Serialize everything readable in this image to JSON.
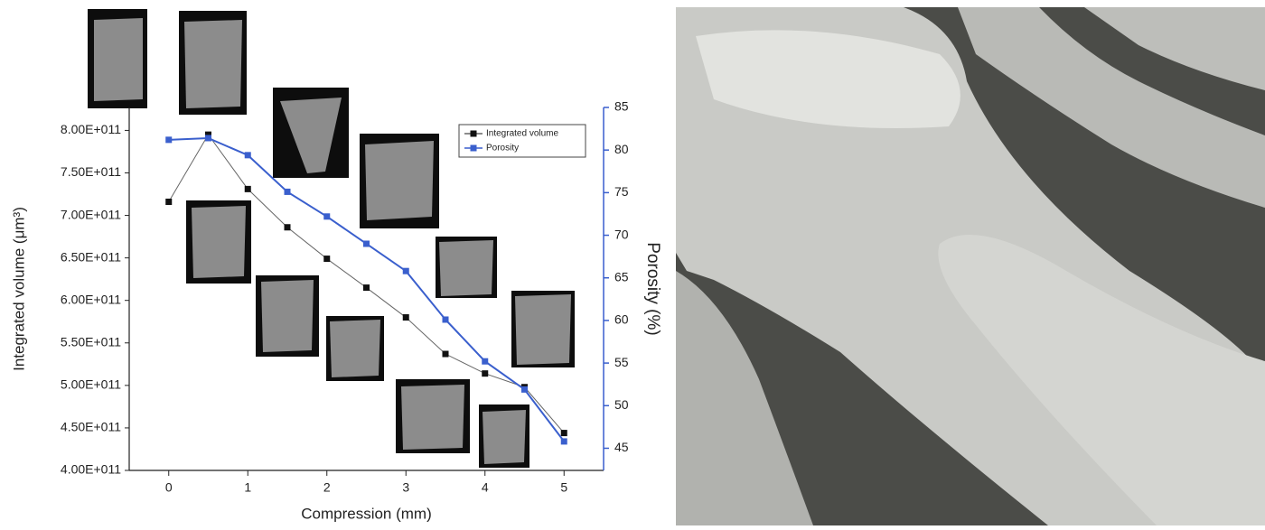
{
  "chart_data": {
    "type": "line",
    "x_label": "Compression (mm)",
    "y_label": "Integrated volume (μm³)",
    "y2_label": "Porosity (%)",
    "x": [
      0,
      0.5,
      1,
      1.5,
      2,
      2.5,
      3,
      3.5,
      4,
      4.5,
      5
    ],
    "series": [
      {
        "name": "Integrated volume",
        "color": "#111111",
        "line_color": "#666666",
        "values": [
          716000000000,
          795000000000,
          731000000000,
          686000000000,
          649000000000,
          615000000000,
          580000000000,
          537000000000,
          514000000000,
          498000000000,
          444000000000
        ]
      },
      {
        "name": "Porosity",
        "color": "#3a5fcd",
        "axis": "y2",
        "values": [
          81.2,
          81.4,
          79.4,
          75.1,
          72.2,
          69.0,
          65.8,
          60.1,
          55.2,
          51.9,
          45.8
        ]
      }
    ],
    "xlim": [
      -0.5,
      5.5
    ],
    "xticks": [
      0,
      1,
      2,
      3,
      4,
      5
    ],
    "ylim": [
      400000000000,
      827000000000
    ],
    "yticks": [
      {
        "value": 400000000000,
        "label": "4.00E+011"
      },
      {
        "value": 450000000000,
        "label": "4.50E+011"
      },
      {
        "value": 500000000000,
        "label": "5.00E+011"
      },
      {
        "value": 550000000000,
        "label": "5.50E+011"
      },
      {
        "value": 600000000000,
        "label": "6.00E+011"
      },
      {
        "value": 650000000000,
        "label": "6.50E+011"
      },
      {
        "value": 700000000000,
        "label": "7.00E+011"
      },
      {
        "value": 750000000000,
        "label": "7.50E+011"
      },
      {
        "value": 800000000000,
        "label": "8.00E+011"
      }
    ],
    "y2lim": [
      42.4,
      85
    ],
    "y2ticks": [
      45,
      50,
      55,
      60,
      65,
      70,
      75,
      80,
      85
    ],
    "y2_color": "#3a5fcd",
    "legend": "top-right"
  }
}
